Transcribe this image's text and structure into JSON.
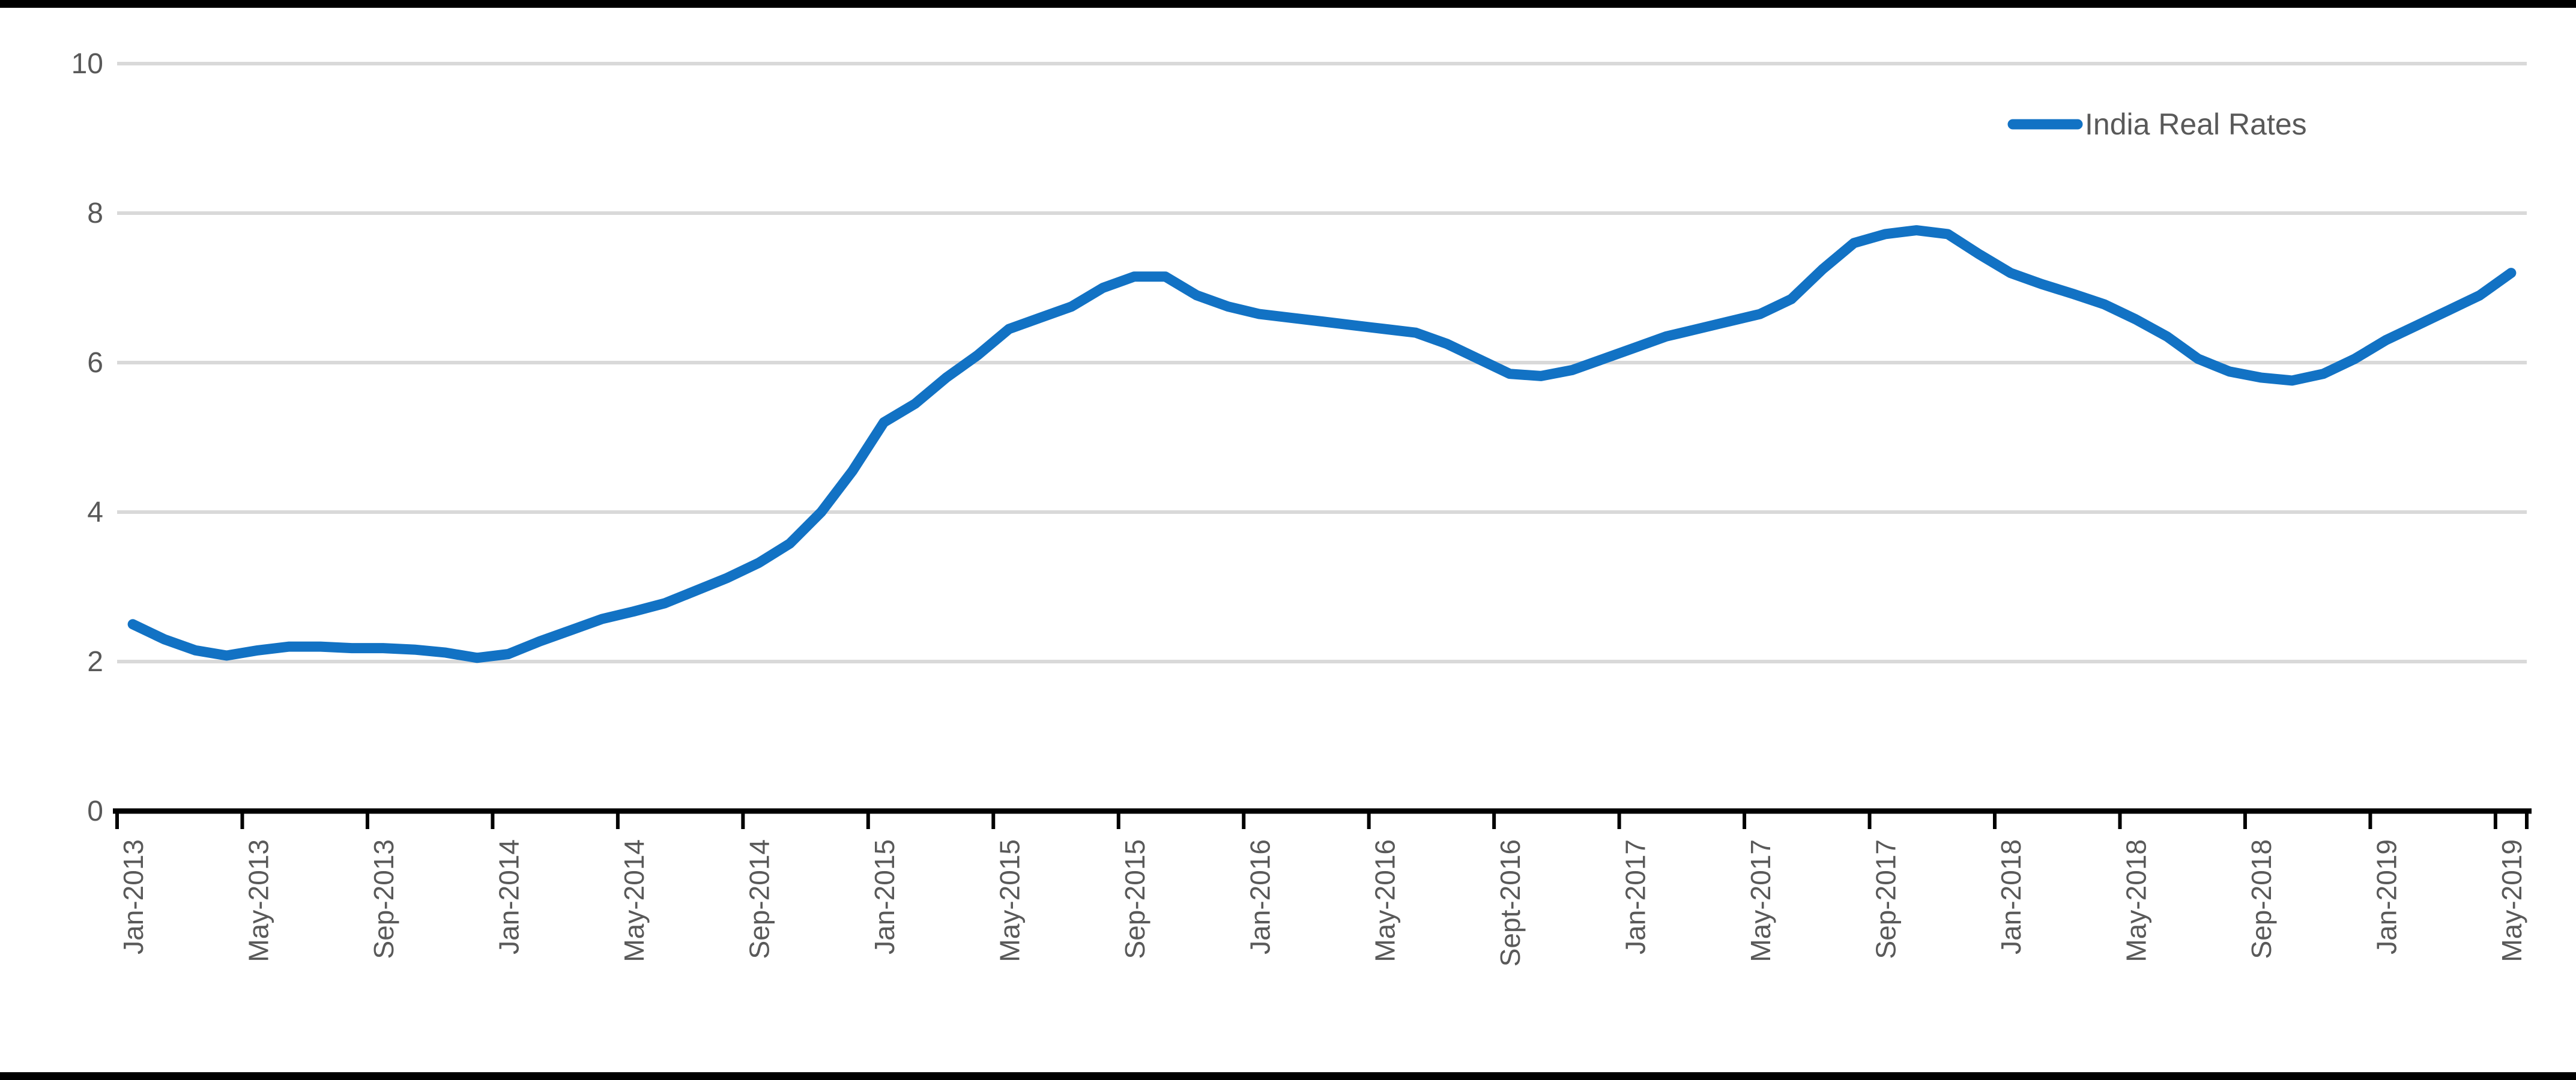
{
  "legend": {
    "label": "India Real Rates"
  },
  "palette": {
    "series_line": "#1272C4",
    "gridline": "#D9D9D9",
    "axis_line": "#000000",
    "tick_text": "#595959",
    "border": "#000000",
    "background": "#FFFFFF"
  },
  "y_axis": {
    "tick_labels": [
      "10",
      "8",
      "6",
      "4",
      "2",
      "0"
    ],
    "tick_values": [
      10,
      8,
      6,
      4,
      2,
      0
    ]
  },
  "x_axis": {
    "tick_labels": [
      "Jan-2013",
      "May-2013",
      "Sep-2013",
      "Jan-2014",
      "May-2014",
      "Sep-2014",
      "Jan-2015",
      "May-2015",
      "Sep-2015",
      "Jan-2016",
      "May-2016",
      "Sept-2016",
      "Jan-2017",
      "May-2017",
      "Sep-2017",
      "Jan-2018",
      "May-2018",
      "Sep-2018",
      "Jan-2019",
      "May-2019"
    ],
    "label_every_n_months": 4
  },
  "chart_data": {
    "type": "line",
    "title": "",
    "xlabel": "",
    "ylabel": "",
    "ylim": [
      0,
      10
    ],
    "grid": "horizontal",
    "legend_position": "top-right",
    "x_start": "Jan-2013",
    "x_end": "May-2019",
    "x_interval": "monthly",
    "x_tick_labels": [
      "Jan-2013",
      "May-2013",
      "Sep-2013",
      "Jan-2014",
      "May-2014",
      "Sep-2014",
      "Jan-2015",
      "May-2015",
      "Sep-2015",
      "Jan-2016",
      "May-2016",
      "Sept-2016",
      "Jan-2017",
      "May-2017",
      "Sep-2017",
      "Jan-2018",
      "May-2018",
      "Sep-2018",
      "Jan-2019",
      "May-2019"
    ],
    "series": [
      {
        "name": "India Real Rates",
        "color": "#1272C4",
        "values": [
          2.5,
          2.3,
          2.15,
          2.08,
          2.15,
          2.2,
          2.2,
          2.18,
          2.18,
          2.16,
          2.12,
          2.05,
          2.1,
          2.27,
          2.42,
          2.57,
          2.67,
          2.78,
          2.95,
          3.12,
          3.32,
          3.58,
          4.0,
          4.55,
          5.2,
          5.45,
          5.8,
          6.1,
          6.45,
          6.6,
          6.75,
          7.0,
          7.15,
          7.15,
          6.9,
          6.75,
          6.65,
          6.6,
          6.55,
          6.5,
          6.45,
          6.4,
          6.25,
          6.05,
          5.85,
          5.82,
          5.9,
          6.05,
          6.2,
          6.35,
          6.45,
          6.55,
          6.65,
          6.85,
          7.25,
          7.6,
          7.72,
          7.77,
          7.72,
          7.45,
          7.2,
          7.05,
          6.92,
          6.78,
          6.58,
          6.35,
          6.05,
          5.88,
          5.8,
          5.76,
          5.85,
          6.05,
          6.3,
          6.5,
          6.7,
          6.9,
          7.2
        ]
      }
    ]
  }
}
